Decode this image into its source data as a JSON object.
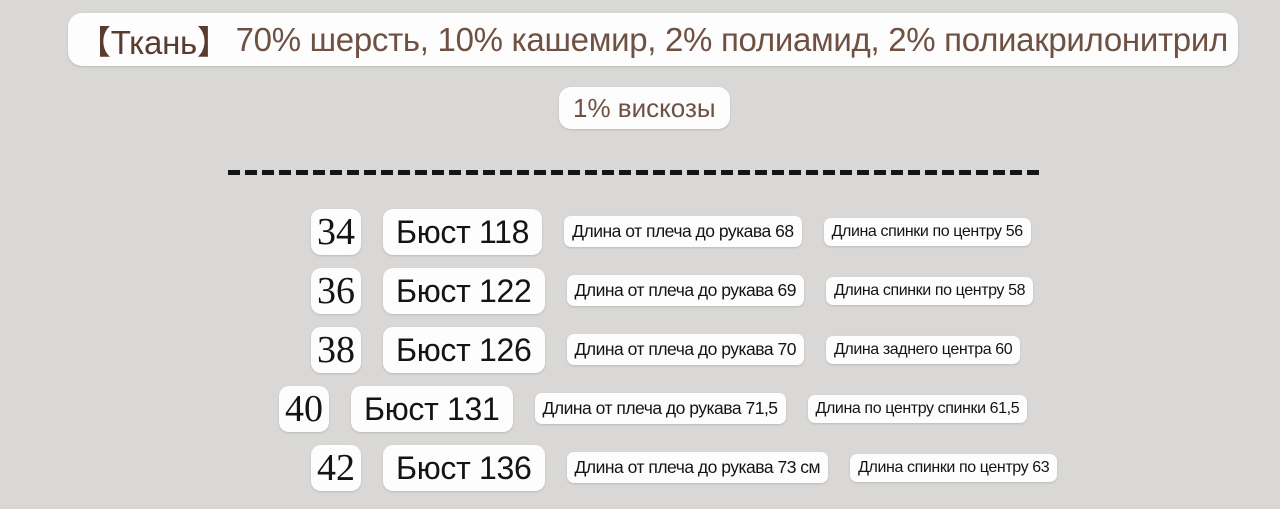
{
  "header": {
    "fabric_label": "【Ткань】",
    "fabric_value": "70% шерсть, 10% кашемир, 2% полиамид, 2% полиакрилонитрил",
    "text_color": "#6f5143"
  },
  "subheader": {
    "text": "1% вискозы"
  },
  "divider": {
    "style": "dashed",
    "color": "#151515"
  },
  "size_table": {
    "rows": [
      {
        "size": "34",
        "bust": "Бюст 118",
        "sleeve": "Длина от плеча до рукава 68",
        "back": "Длина спинки по центру 56"
      },
      {
        "size": "36",
        "bust": "Бюст 122",
        "sleeve": "Длина от плеча до рукава 69",
        "back": "Длина спинки по центру 58"
      },
      {
        "size": "38",
        "bust": "Бюст 126",
        "sleeve": "Длина от плеча до рукава 70",
        "back": "Длина заднего центра 60"
      },
      {
        "size": "40",
        "bust": "Бюст 131",
        "sleeve": "Длина от плеча до рукава 71,5",
        "back": "Длина по центру спинки 61,5"
      },
      {
        "size": "42",
        "bust": "Бюст 136",
        "sleeve": "Длина от плеча до рукава 73 см",
        "back": "Длина спинки по центру 63"
      }
    ]
  }
}
